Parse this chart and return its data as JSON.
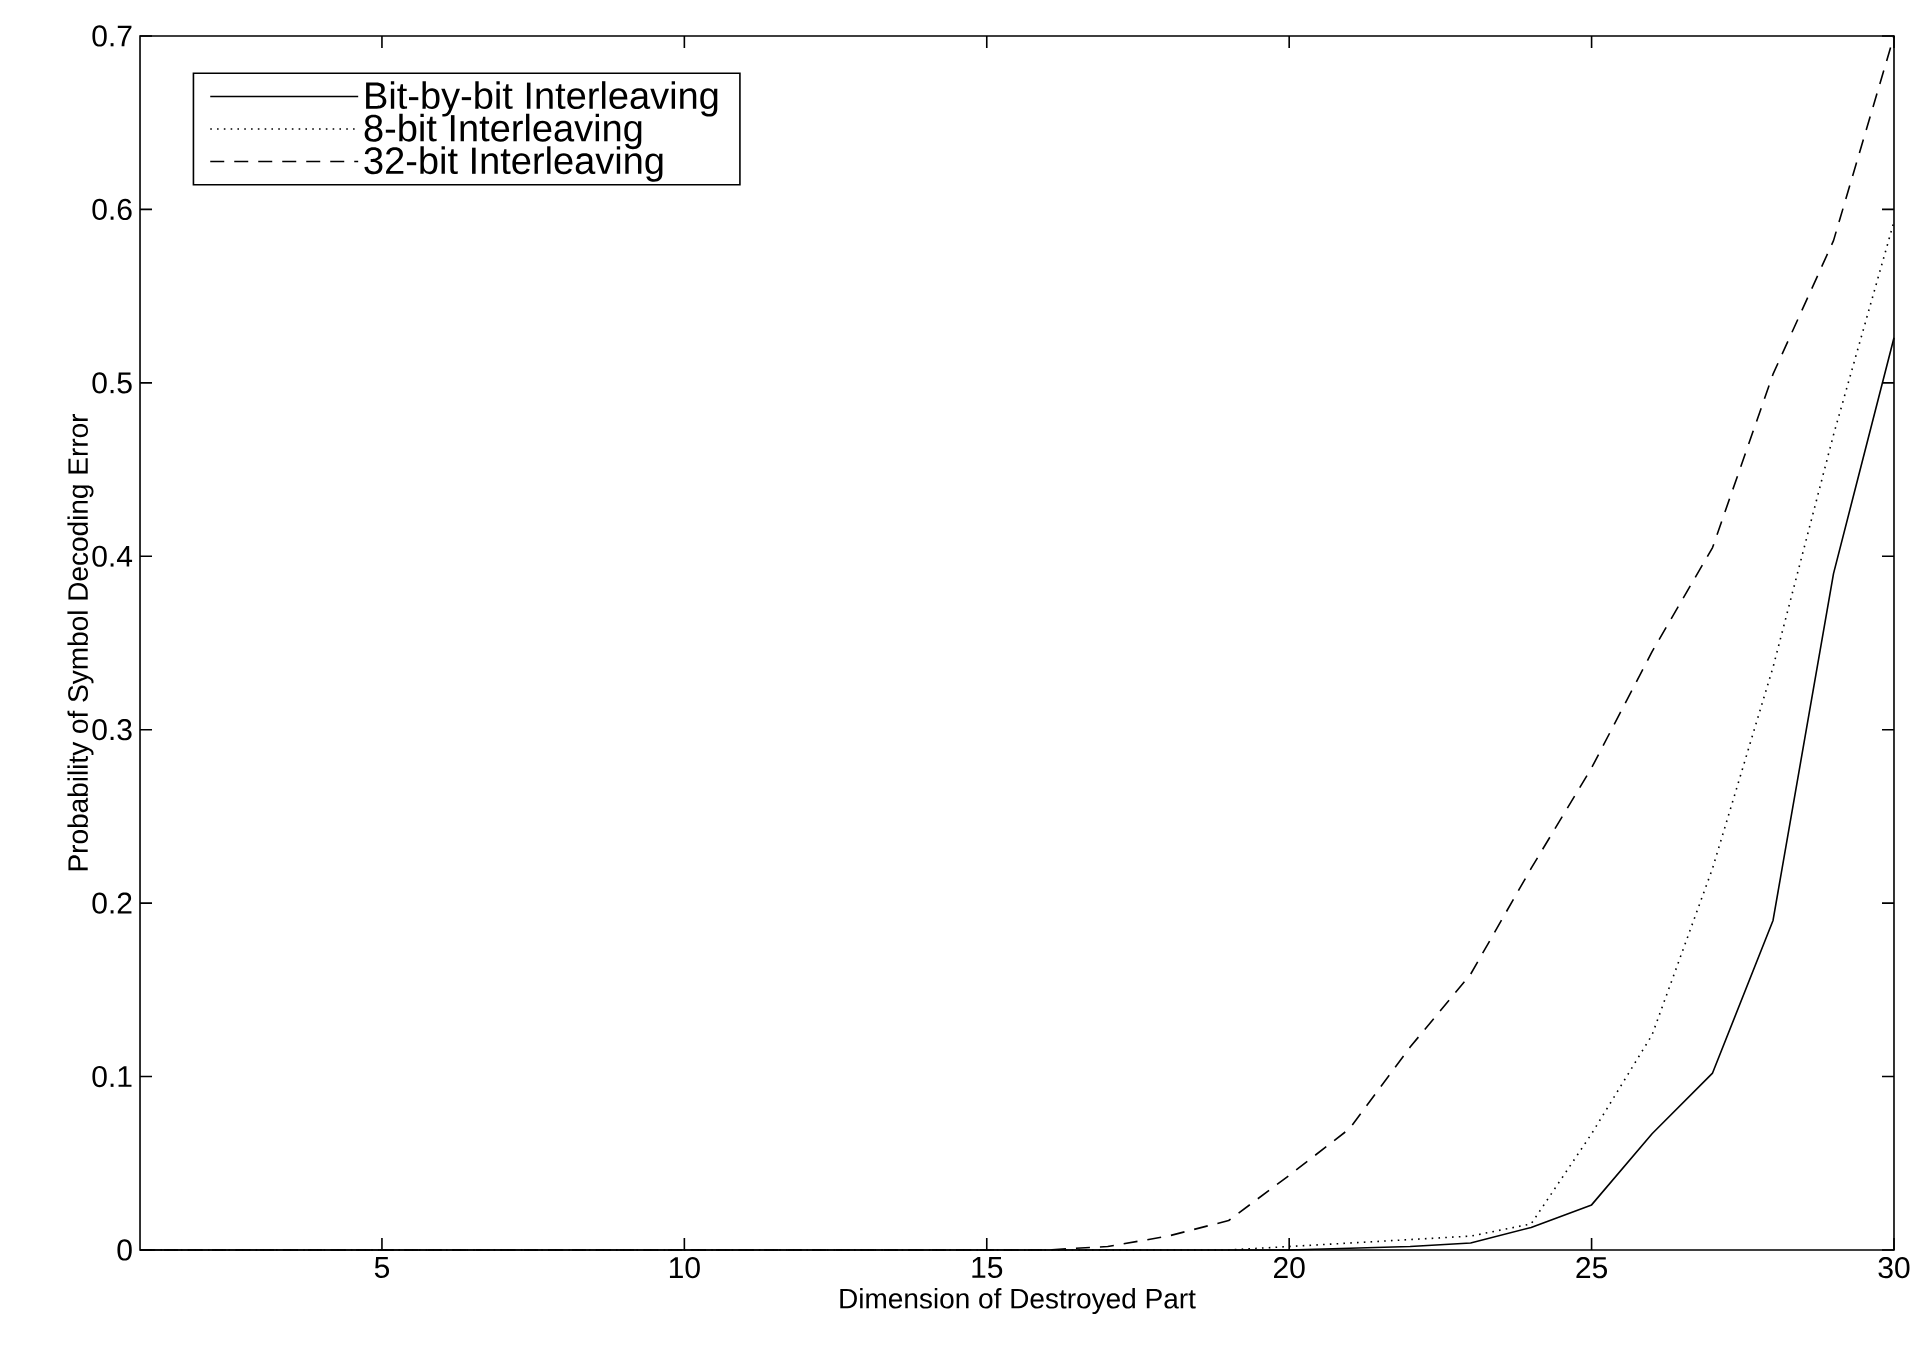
{
  "chart_data": {
    "type": "line",
    "xlabel": "Dimension of Destroyed Part",
    "ylabel": "Probability of Symbol Decoding Error",
    "x": [
      1,
      2,
      3,
      4,
      5,
      6,
      7,
      8,
      9,
      10,
      11,
      12,
      13,
      14,
      15,
      16,
      17,
      18,
      19,
      20,
      21,
      22,
      23,
      24,
      25,
      26,
      27,
      28,
      29,
      30
    ],
    "series": [
      {
        "name": "Bit-by-bit Interleaving",
        "color": "#000000",
        "line_style": "solid",
        "values": [
          0,
          0,
          0,
          0,
          0,
          0,
          0,
          0,
          0,
          0,
          0,
          0,
          0,
          0,
          0,
          0,
          0,
          0,
          0,
          0,
          0.001,
          0.002,
          0.004,
          0.013,
          0.026,
          0.067,
          0.102,
          0.19,
          0.39,
          0.526
        ]
      },
      {
        "name": "8-bit Interleaving",
        "color": "#000000",
        "line_style": "dotted",
        "values": [
          0,
          0,
          0,
          0,
          0,
          0,
          0,
          0,
          0,
          0,
          0,
          0,
          0,
          0,
          0,
          0,
          0,
          0,
          0,
          0.002,
          0.004,
          0.006,
          0.008,
          0.015,
          0.067,
          0.124,
          0.22,
          0.336,
          0.47,
          0.593
        ]
      },
      {
        "name": "32-bit Interleaving",
        "color": "#000000",
        "line_style": "dashed",
        "values": [
          0,
          0,
          0,
          0,
          0,
          0,
          0,
          0,
          0,
          0,
          0,
          0,
          0,
          0,
          0,
          0,
          0.002,
          0.008,
          0.017,
          0.043,
          0.07,
          0.117,
          0.159,
          0.22,
          0.278,
          0.345,
          0.405,
          0.505,
          0.582,
          0.7
        ]
      }
    ],
    "xlim": [
      1,
      30
    ],
    "ylim": [
      0,
      0.7
    ],
    "xticks": [
      5,
      10,
      15,
      20,
      25,
      30
    ],
    "yticks": [
      0,
      0.1,
      0.2,
      0.3,
      0.4,
      0.5,
      0.6,
      0.7
    ],
    "legend": "top left",
    "marker": "none",
    "grid": false
  }
}
